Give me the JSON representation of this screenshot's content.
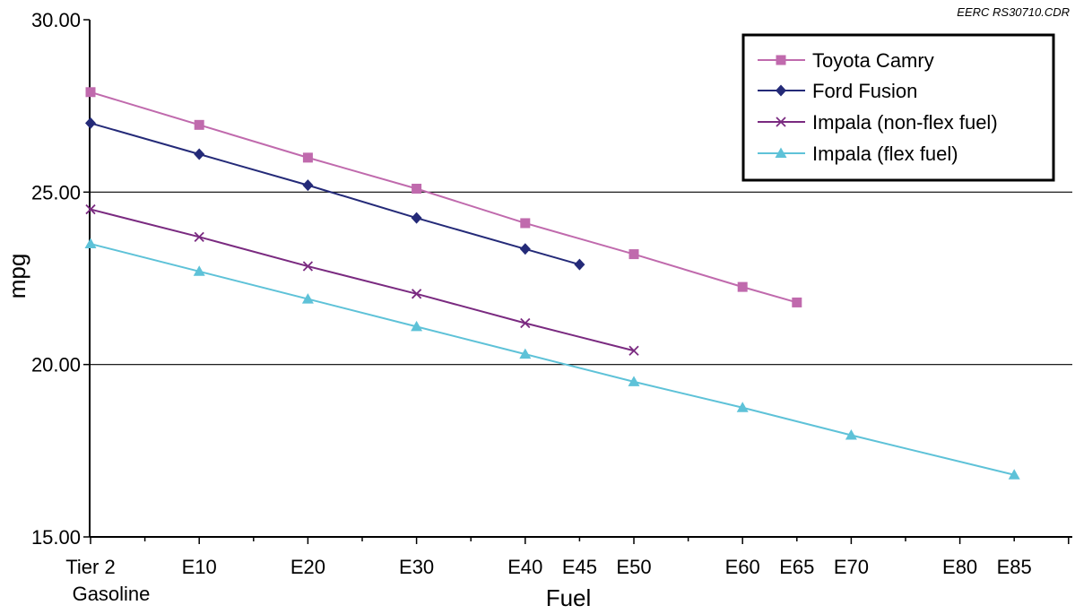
{
  "source_note": "EERC RS30710.CDR",
  "chart_data": {
    "type": "line",
    "title": "",
    "xlabel": "Fuel",
    "ylabel": "mpg",
    "ylim": [
      15,
      30
    ],
    "yticks": [
      "15.00",
      "20.00",
      "25.00",
      "30.00"
    ],
    "gridlines_y": [
      20,
      25
    ],
    "legend_position": "top-right",
    "x_ticks": [
      {
        "pct": 0,
        "label": "Tier 2",
        "label2": "Gasoline"
      },
      {
        "pct": 10,
        "label": "E10"
      },
      {
        "pct": 20,
        "label": "E20"
      },
      {
        "pct": 30,
        "label": "E30"
      },
      {
        "pct": 40,
        "label": "E40"
      },
      {
        "pct": 45,
        "label": "E45"
      },
      {
        "pct": 50,
        "label": "E50"
      },
      {
        "pct": 60,
        "label": "E60"
      },
      {
        "pct": 65,
        "label": "E65"
      },
      {
        "pct": 70,
        "label": "E70"
      },
      {
        "pct": 80,
        "label": "E80"
      },
      {
        "pct": 85,
        "label": "E85"
      }
    ],
    "xlim": [
      0,
      90
    ],
    "series": [
      {
        "name": "Toyota Camry",
        "color": "#c06aad",
        "marker": "square",
        "x": [
          0,
          10,
          20,
          30,
          40,
          50,
          60,
          65
        ],
        "y": [
          27.9,
          26.95,
          26.0,
          25.1,
          24.1,
          23.2,
          22.25,
          21.8
        ]
      },
      {
        "name": "Ford Fusion",
        "color": "#242a78",
        "marker": "diamond",
        "x": [
          0,
          10,
          20,
          30,
          40,
          45
        ],
        "y": [
          27.0,
          26.1,
          25.2,
          24.25,
          23.35,
          22.9
        ]
      },
      {
        "name": "Impala (non-flex fuel)",
        "color": "#7a2a80",
        "marker": "x",
        "x": [
          0,
          10,
          20,
          30,
          40,
          50
        ],
        "y": [
          24.5,
          23.7,
          22.85,
          22.05,
          21.2,
          20.4
        ]
      },
      {
        "name": "Impala (flex fuel)",
        "color": "#5ec2d8",
        "marker": "triangle",
        "x": [
          0,
          10,
          20,
          30,
          40,
          50,
          60,
          70,
          85
        ],
        "y": [
          23.5,
          22.7,
          21.9,
          21.1,
          20.3,
          19.5,
          18.75,
          17.95,
          16.8
        ]
      }
    ]
  }
}
